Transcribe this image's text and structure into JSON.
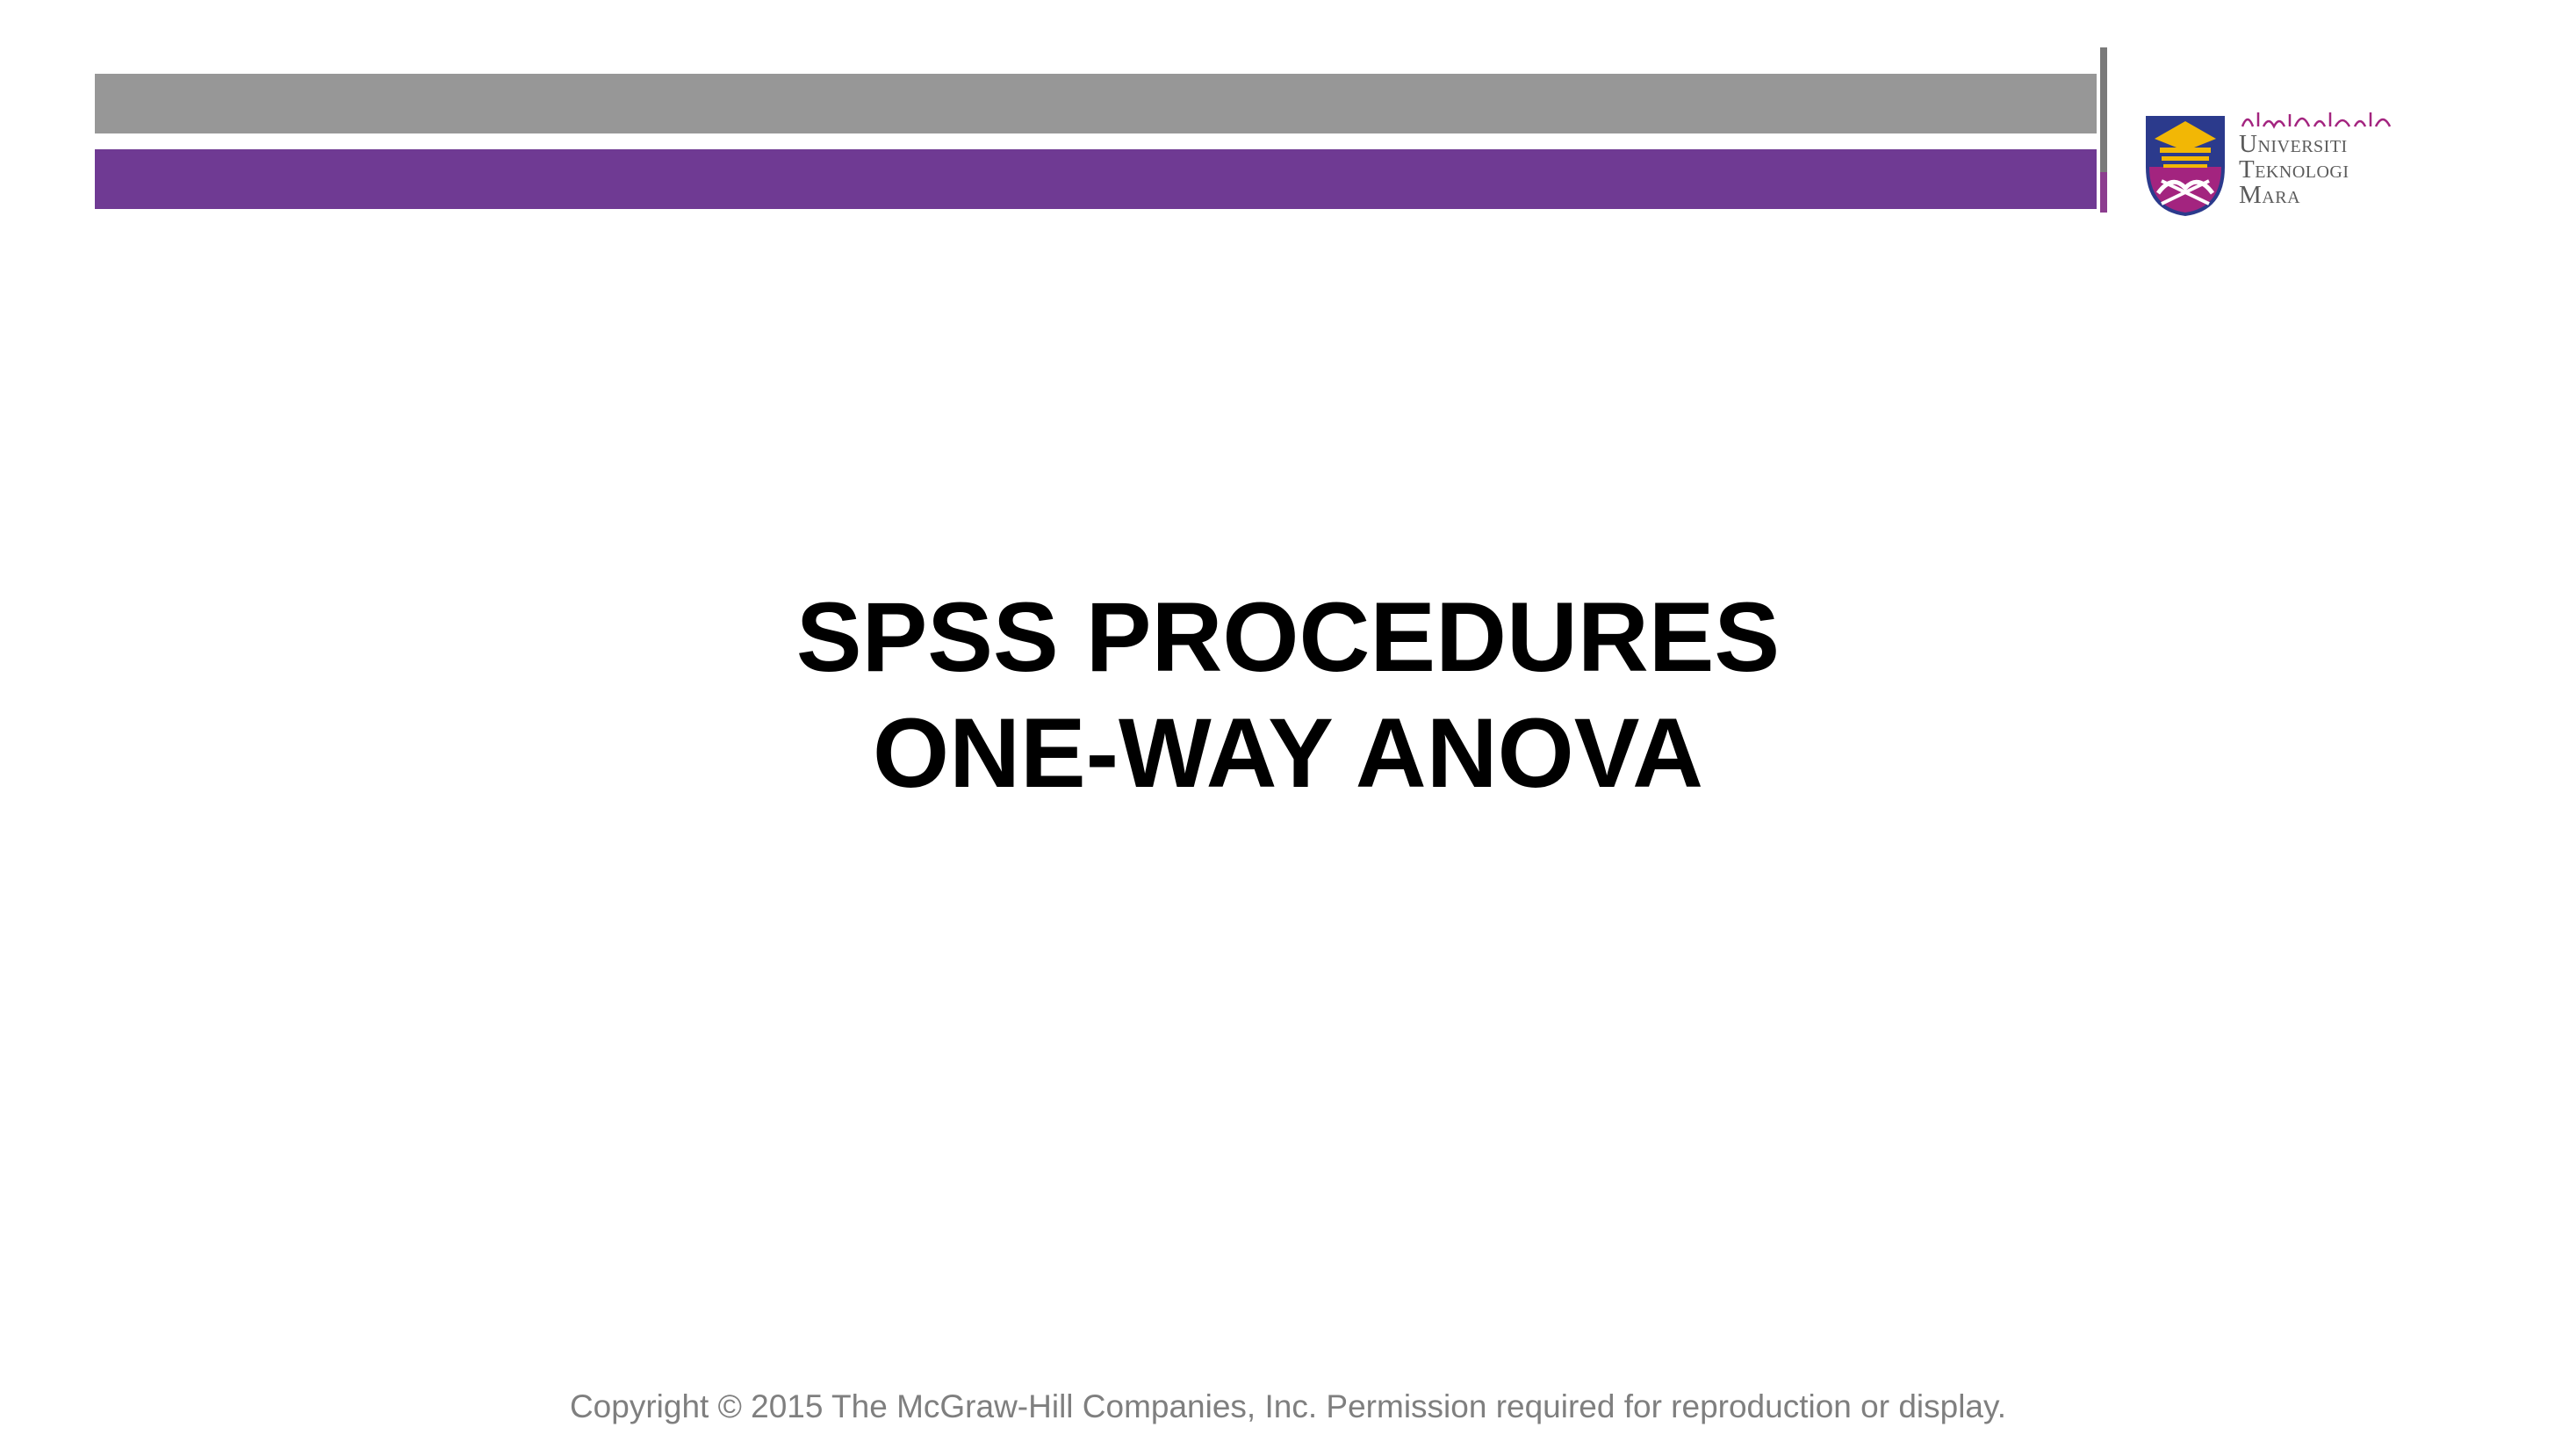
{
  "slide": {
    "title_line_1": "SPSS PROCEDURES",
    "title_line_2": "ONE-WAY ANOVA",
    "footer": "Copyright © 2015 The McGraw-Hill Companies, Inc. Permission required for reproduction or display."
  },
  "logo": {
    "jawi": "اونيۏرسيتي تيكنولوڬي مارا",
    "line_1": "Universiti",
    "line_2": "Teknologi",
    "line_3": "Mara"
  },
  "colors": {
    "gray_bar": "#979797",
    "purple_bar": "#6f3a93",
    "crest_blue": "#2b3a8c",
    "crest_gold": "#f2b705",
    "crest_magenta": "#a3247f"
  }
}
